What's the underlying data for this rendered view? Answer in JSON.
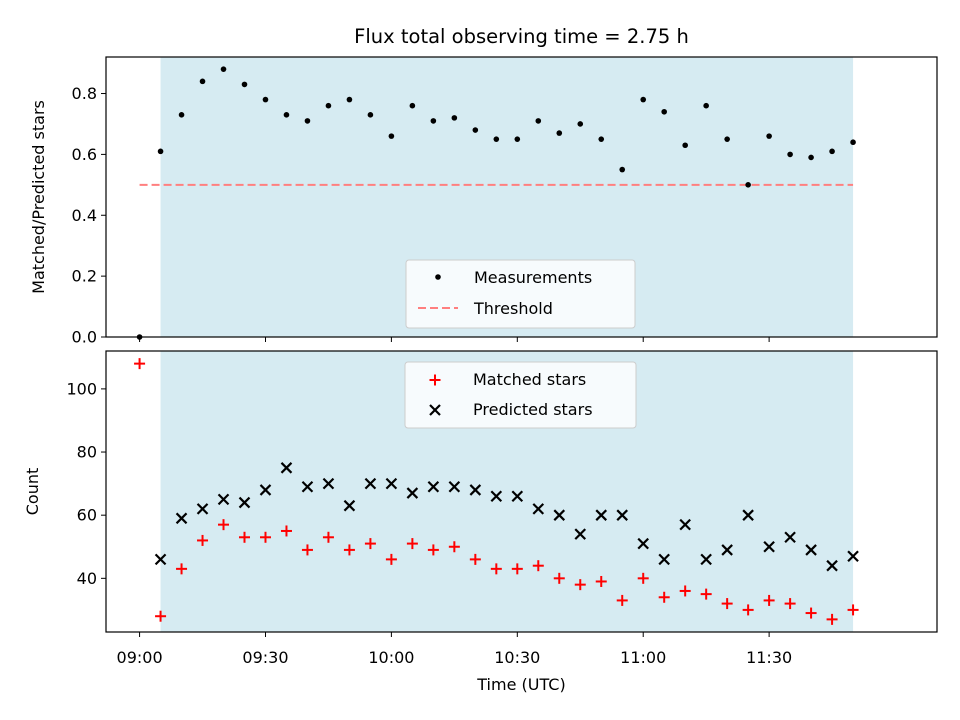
{
  "colors": {
    "measurement": "#000000",
    "threshold": "#ff7f7f",
    "matched": "#ff0000",
    "predicted": "#000000",
    "span": "#add8e6"
  },
  "chart_data": [
    {
      "type": "scatter",
      "title": "Flux total observing time = 2.75 h",
      "xlabel": "",
      "ylabel": "Matched/Predicted stars",
      "xlim": [
        "08:52",
        "12:10"
      ],
      "ylim": [
        0,
        0.92
      ],
      "yticks": [
        "0.0",
        "0.2",
        "0.4",
        "0.6",
        "0.8"
      ],
      "shaded_span": [
        "09:05",
        "11:50"
      ],
      "legend": [
        "Measurements",
        "Threshold"
      ],
      "legend_position": "lower center",
      "threshold": {
        "value": 0.5,
        "x": [
          "09:00",
          "11:50"
        ]
      },
      "series": [
        {
          "name": "Measurements",
          "marker": "dot",
          "x": [
            "09:00",
            "09:05",
            "09:10",
            "09:15",
            "09:20",
            "09:25",
            "09:30",
            "09:35",
            "09:40",
            "09:45",
            "09:50",
            "09:55",
            "10:00",
            "10:05",
            "10:10",
            "10:15",
            "10:20",
            "10:25",
            "10:30",
            "10:35",
            "10:40",
            "10:45",
            "10:50",
            "10:55",
            "11:00",
            "11:05",
            "11:10",
            "11:15",
            "11:20",
            "11:25",
            "11:30",
            "11:35",
            "11:40",
            "11:45",
            "11:50"
          ],
          "values": [
            0.0,
            0.61,
            0.73,
            0.84,
            0.88,
            0.83,
            0.78,
            0.73,
            0.71,
            0.76,
            0.78,
            0.73,
            0.66,
            0.76,
            0.71,
            0.72,
            0.68,
            0.65,
            0.65,
            0.71,
            0.67,
            0.7,
            0.65,
            0.55,
            0.78,
            0.74,
            0.63,
            0.76,
            0.65,
            0.5,
            0.66,
            0.6,
            0.59,
            0.61,
            0.64
          ]
        }
      ]
    },
    {
      "type": "scatter",
      "title": "",
      "xlabel": "Time (UTC)",
      "ylabel": "Count",
      "xlim": [
        "08:52",
        "12:10"
      ],
      "ylim": [
        23,
        112
      ],
      "yticks": [
        "40",
        "60",
        "80",
        "100"
      ],
      "xticks": [
        "09:00",
        "09:30",
        "10:00",
        "10:30",
        "11:00",
        "11:30"
      ],
      "shaded_span": [
        "09:05",
        "11:50"
      ],
      "legend": [
        "Matched stars",
        "Predicted stars"
      ],
      "legend_position": "upper center",
      "x": [
        "09:00",
        "09:05",
        "09:10",
        "09:15",
        "09:20",
        "09:25",
        "09:30",
        "09:35",
        "09:40",
        "09:45",
        "09:50",
        "09:55",
        "10:00",
        "10:05",
        "10:10",
        "10:15",
        "10:20",
        "10:25",
        "10:30",
        "10:35",
        "10:40",
        "10:45",
        "10:50",
        "10:55",
        "11:00",
        "11:05",
        "11:10",
        "11:15",
        "11:20",
        "11:25",
        "11:30",
        "11:35",
        "11:40",
        "11:45",
        "11:50"
      ],
      "series": [
        {
          "name": "Matched stars",
          "marker": "plus",
          "values": [
            108,
            28,
            43,
            52,
            57,
            53,
            53,
            55,
            49,
            53,
            49,
            51,
            46,
            51,
            49,
            50,
            46,
            43,
            43,
            44,
            40,
            38,
            39,
            33,
            40,
            34,
            36,
            35,
            32,
            30,
            33,
            32,
            29,
            27,
            30
          ]
        },
        {
          "name": "Predicted stars",
          "marker": "cross",
          "values": [
            null,
            46,
            59,
            62,
            65,
            64,
            68,
            75,
            69,
            70,
            63,
            70,
            70,
            67,
            69,
            69,
            68,
            66,
            66,
            62,
            60,
            54,
            60,
            60,
            51,
            46,
            57,
            46,
            49,
            60,
            50,
            53,
            49,
            44,
            47
          ]
        }
      ]
    }
  ]
}
